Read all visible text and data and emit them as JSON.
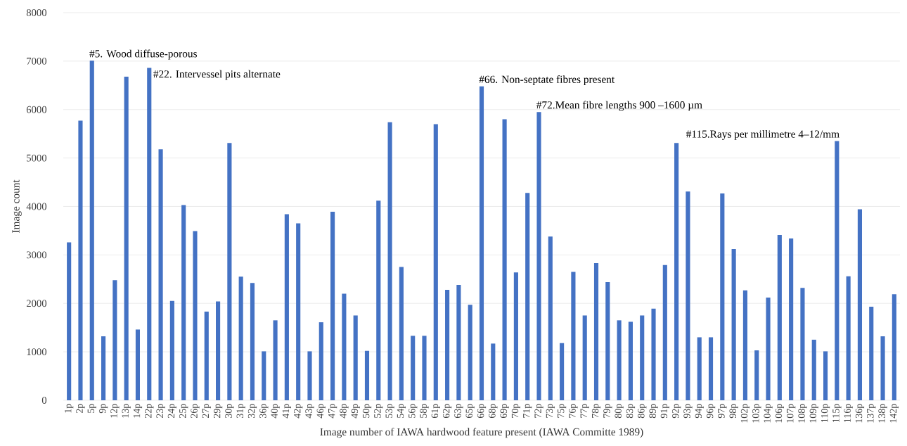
{
  "chart_data": {
    "type": "bar",
    "xlabel": "Image number of IAWA hardwood feature present (IAWA Committe 1989)",
    "ylabel": "Image count",
    "categories": [
      "1p",
      "2p",
      "5p",
      "9p",
      "12p",
      "13p",
      "14p",
      "22p",
      "23p",
      "24p",
      "25p",
      "26p",
      "27p",
      "29p",
      "30p",
      "31p",
      "32p",
      "36p",
      "40p",
      "41p",
      "42p",
      "43p",
      "46p",
      "47p",
      "48p",
      "49p",
      "50p",
      "52p",
      "53p",
      "54p",
      "56p",
      "58p",
      "61p",
      "62p",
      "63p",
      "65p",
      "66p",
      "68p",
      "69p",
      "70p",
      "71p",
      "72p",
      "73p",
      "75p",
      "76p",
      "77p",
      "78p",
      "79p",
      "80p",
      "83p",
      "86p",
      "89p",
      "91p",
      "92p",
      "93p",
      "94p",
      "96p",
      "97p",
      "98p",
      "102p",
      "103p",
      "104p",
      "106p",
      "107p",
      "108p",
      "109p",
      "110p",
      "115p",
      "116p",
      "136p",
      "137p",
      "138p",
      "142p"
    ],
    "values": [
      3260,
      5770,
      7010,
      1320,
      2480,
      6680,
      1460,
      6860,
      5180,
      2050,
      4030,
      3490,
      1830,
      2040,
      5310,
      2550,
      2420,
      1010,
      1650,
      3840,
      3650,
      1010,
      1610,
      3890,
      2200,
      1750,
      1020,
      4120,
      5740,
      2750,
      1330,
      1330,
      5700,
      2280,
      2380,
      1970,
      6480,
      1170,
      5800,
      2640,
      4280,
      5950,
      3380,
      1180,
      2650,
      1750,
      2830,
      2440,
      1650,
      1620,
      1750,
      1890,
      2790,
      5310,
      4310,
      1300,
      1300,
      4270,
      3120,
      2270,
      1030,
      2120,
      3410,
      3340,
      2320,
      1250,
      1010,
      5350,
      2560,
      3940,
      1930,
      1320,
      2190
    ],
    "color": "#4472c4",
    "ylim": [
      0,
      8000
    ],
    "yticks": [
      0,
      1000,
      2000,
      3000,
      4000,
      5000,
      6000,
      7000,
      8000
    ],
    "grid": "y",
    "annotations": [
      {
        "text": "#5. Wood diffuse-porous",
        "x": "5p",
        "y": 7010
      },
      {
        "text": "#22. Intervessel pits alternate",
        "x": "22p",
        "y": 6860
      },
      {
        "text": "#66. Non-septate fibres present",
        "x": "66p",
        "y": 6480
      },
      {
        "text": "#72.Mean fibre lengths 900 –1600 µm",
        "x": "72p",
        "y": 5950
      },
      {
        "text": "#115.Rays per millimetre 4–12/mm",
        "x": "115p",
        "y": 5350
      }
    ]
  }
}
